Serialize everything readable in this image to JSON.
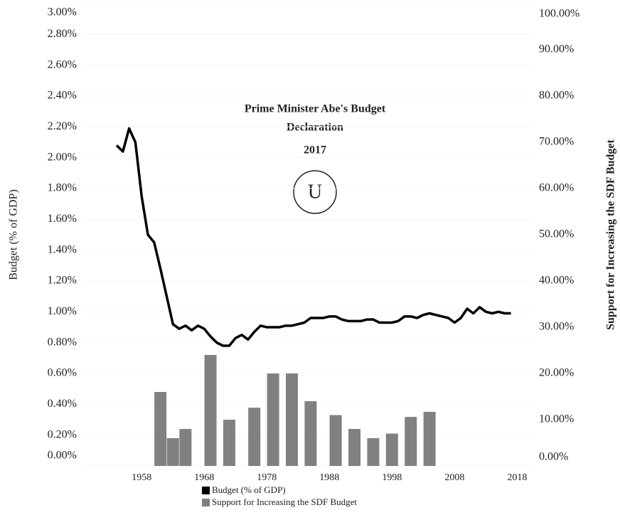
{
  "chart_data": {
    "type": "combo",
    "annotation": {
      "lines": [
        "Prime Minister Abe's Budget",
        "Declaration"
      ],
      "year": "2017",
      "marker": "U"
    },
    "ylabel": "Budget (% of GDP)",
    "y2label": "Support for Increasing the SDF Budget",
    "xlim": [
      1949,
      2020
    ],
    "xticks": [
      1958,
      1968,
      1978,
      1988,
      1998,
      2008,
      2018
    ],
    "ylim": [
      0,
      3
    ],
    "yticks": [
      {
        "value": 0,
        "label": "0.00%"
      },
      {
        "value": 0.2,
        "label": "0.20%"
      },
      {
        "value": 0.4,
        "label": "0.40%"
      },
      {
        "value": 0.6,
        "label": "0.60%"
      },
      {
        "value": 0.8,
        "label": "0.80%"
      },
      {
        "value": 1.0,
        "label": "1.00%"
      },
      {
        "value": 1.2,
        "label": "1.20%"
      },
      {
        "value": 1.4,
        "label": "1.40%"
      },
      {
        "value": 1.6,
        "label": "1.60%"
      },
      {
        "value": 1.8,
        "label": "1.80%"
      },
      {
        "value": 2.0,
        "label": "2.00%"
      },
      {
        "value": 2.2,
        "label": "2.20%"
      },
      {
        "value": 2.4,
        "label": "2.40%"
      },
      {
        "value": 2.6,
        "label": "2.60%"
      },
      {
        "value": 2.8,
        "label": "2.80%"
      },
      {
        "value": 3.0,
        "label": "3.00%"
      }
    ],
    "y2lim": [
      0,
      100
    ],
    "y2ticks": [
      {
        "value": 0,
        "label": "0.00%"
      },
      {
        "value": 10,
        "label": "10.00%"
      },
      {
        "value": 20,
        "label": "20.00%"
      },
      {
        "value": 30,
        "label": "30.00%"
      },
      {
        "value": 40,
        "label": "40.00%"
      },
      {
        "value": 50,
        "label": "50.00%"
      },
      {
        "value": 60,
        "label": "60.00%"
      },
      {
        "value": 70,
        "label": "70.00%"
      },
      {
        "value": 80,
        "label": "80.00%"
      },
      {
        "value": 90,
        "label": "90.00%"
      },
      {
        "value": 100,
        "label": "100.00%"
      }
    ],
    "series": [
      {
        "name": "Budget (% of GDP)",
        "type": "line",
        "axis": "y",
        "color": "#000000",
        "x": [
          1954,
          1955,
          1956,
          1957,
          1958,
          1959,
          1960,
          1961,
          1962,
          1963,
          1964,
          1965,
          1966,
          1967,
          1968,
          1969,
          1970,
          1971,
          1972,
          1973,
          1974,
          1975,
          1976,
          1977,
          1978,
          1979,
          1980,
          1981,
          1982,
          1983,
          1984,
          1985,
          1986,
          1987,
          1988,
          1989,
          1990,
          1991,
          1992,
          1993,
          1994,
          1995,
          1996,
          1997,
          1998,
          1999,
          2000,
          2001,
          2002,
          2003,
          2004,
          2005,
          2006,
          2007,
          2008,
          2009,
          2010,
          2011,
          2012,
          2013,
          2014,
          2015,
          2016,
          2017
        ],
        "values": [
          2.08,
          2.04,
          2.19,
          2.1,
          1.75,
          1.5,
          1.45,
          1.28,
          1.1,
          0.92,
          0.89,
          0.91,
          0.88,
          0.91,
          0.89,
          0.84,
          0.8,
          0.78,
          0.78,
          0.83,
          0.85,
          0.82,
          0.87,
          0.91,
          0.9,
          0.9,
          0.9,
          0.91,
          0.91,
          0.92,
          0.93,
          0.96,
          0.96,
          0.96,
          0.97,
          0.97,
          0.95,
          0.94,
          0.94,
          0.94,
          0.95,
          0.95,
          0.93,
          0.93,
          0.93,
          0.94,
          0.97,
          0.97,
          0.96,
          0.98,
          0.99,
          0.98,
          0.97,
          0.96,
          0.93,
          0.96,
          1.02,
          0.99,
          1.03,
          1.0,
          0.99,
          1.0,
          0.99,
          0.99
        ]
      },
      {
        "name": "Support for Increasing the SDF Budget",
        "type": "bar",
        "axis": "y2",
        "color": "#808080",
        "x": [
          1961,
          1963,
          1965,
          1969,
          1972,
          1976,
          1979,
          1982,
          1985,
          1989,
          1992,
          1995,
          1998,
          2001,
          2004
        ],
        "values": [
          16,
          6,
          8,
          24,
          10,
          12.6,
          20,
          20,
          14,
          11,
          8,
          6,
          7,
          10.6,
          11.7
        ]
      }
    ]
  }
}
